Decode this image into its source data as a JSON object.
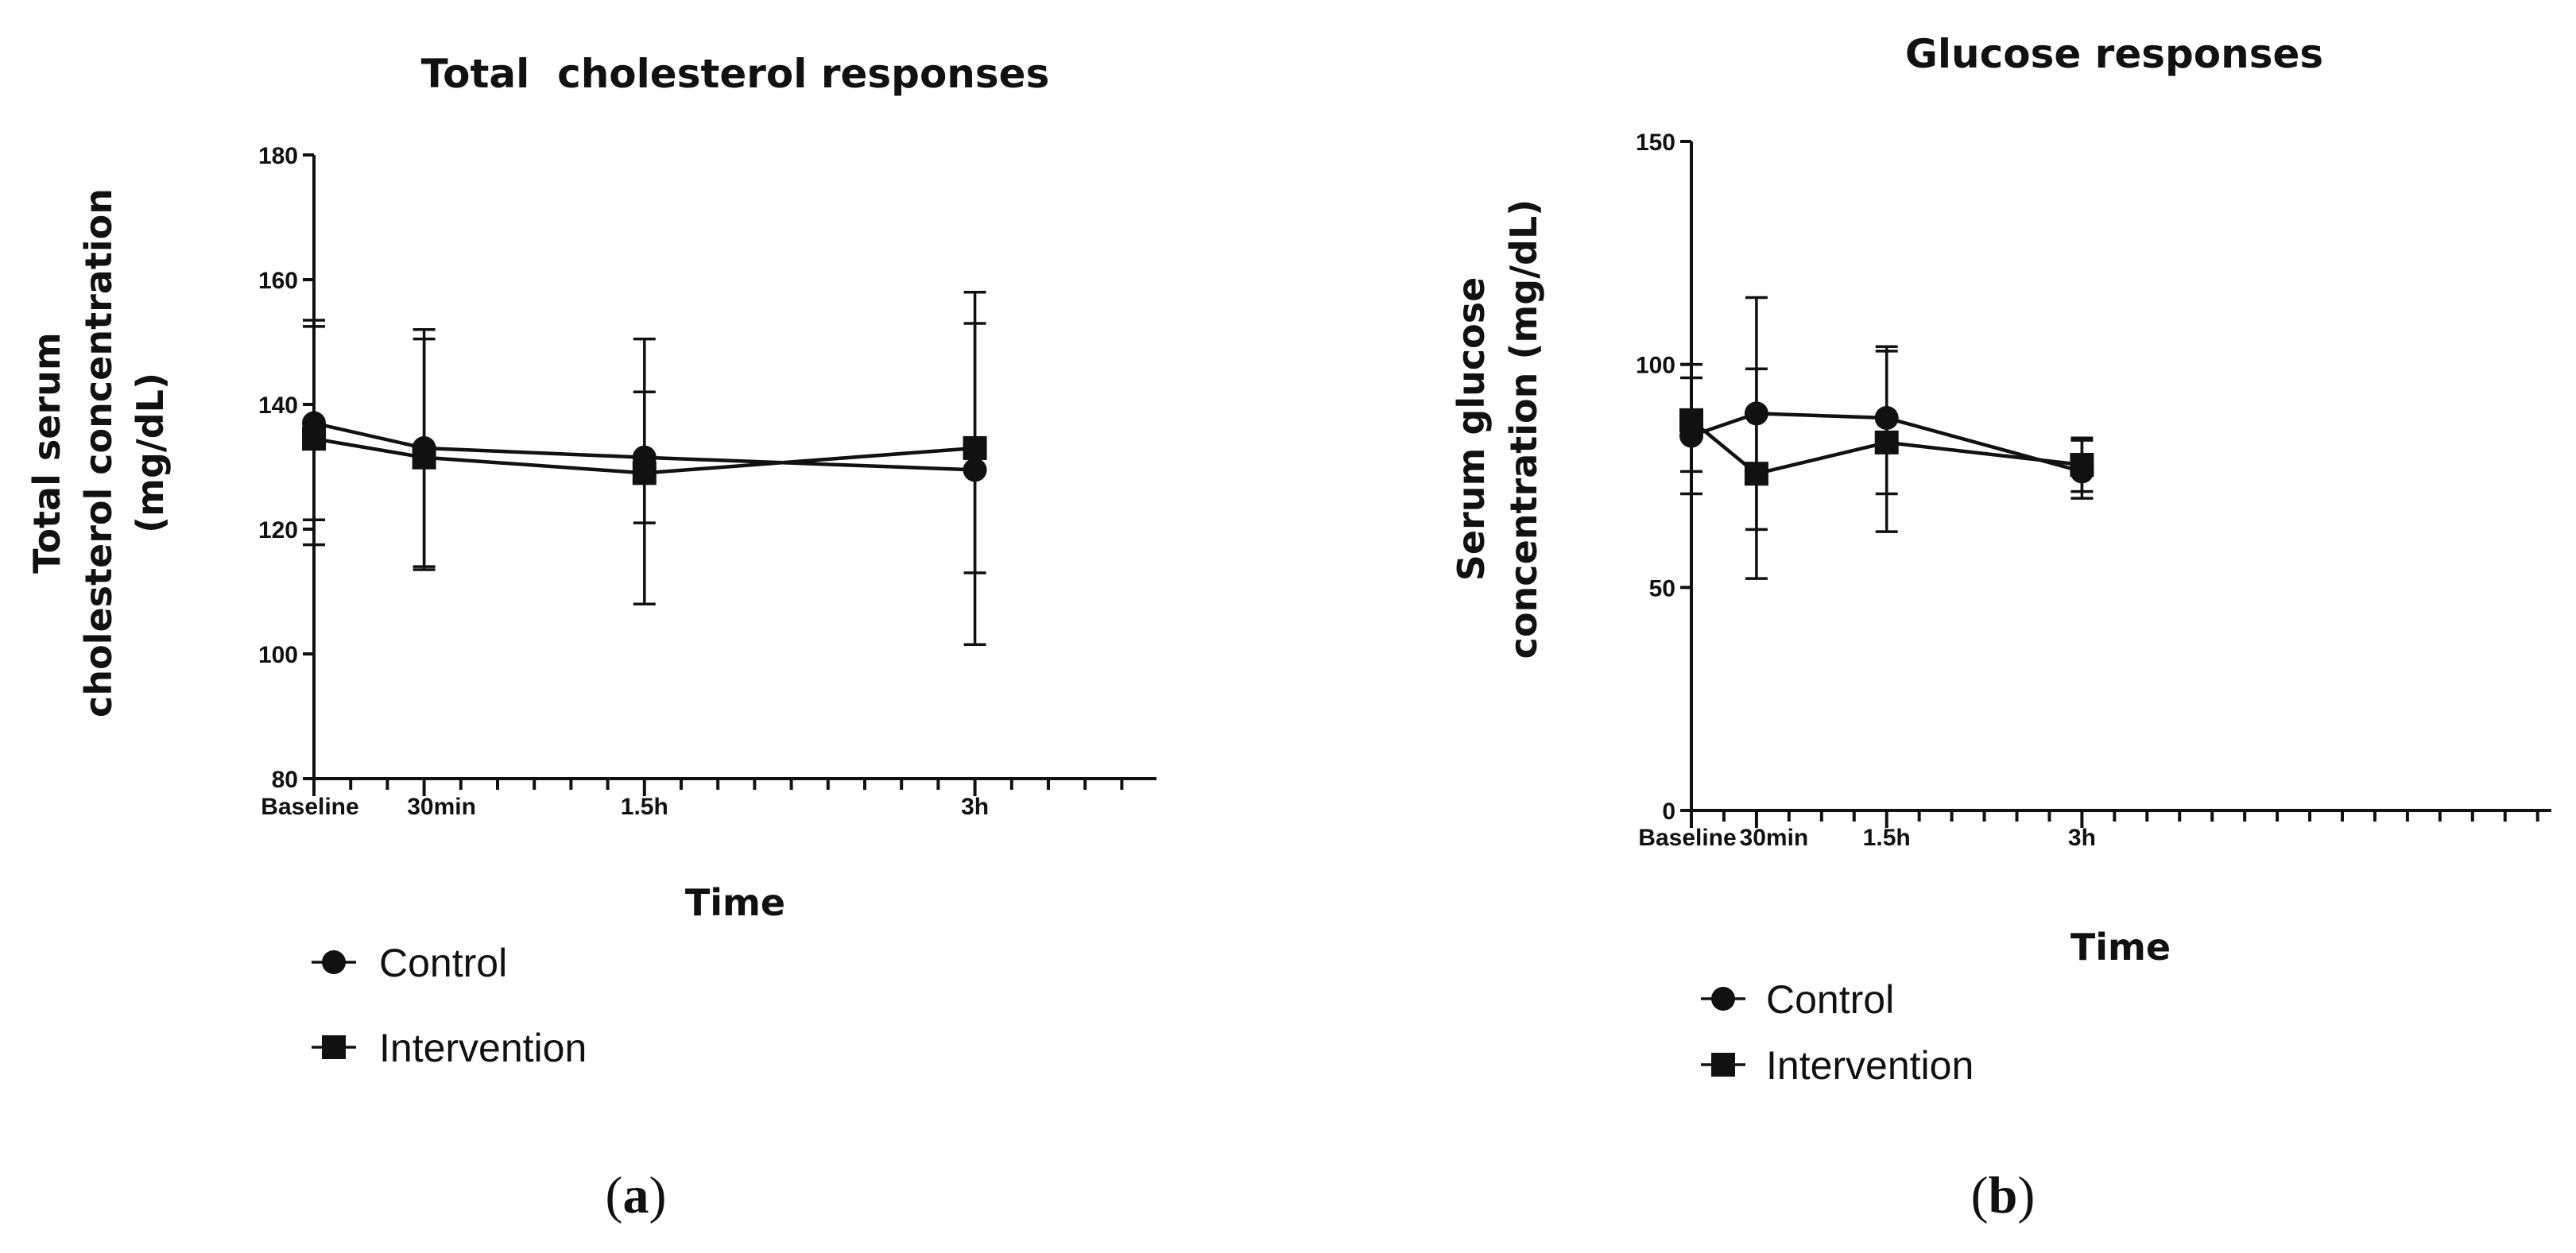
{
  "chart_data": [
    {
      "type": "line",
      "title": "Total  cholesterol responses",
      "xlabel": "Time",
      "ylabel_lines": [
        "Total serum",
        "cholesterol concentration",
        "(mg/dL)"
      ],
      "ylim": [
        80,
        180
      ],
      "yticks": [
        "80",
        "100",
        "120",
        "140",
        "160",
        "180"
      ],
      "x_minutes": [
        0,
        30,
        90,
        180
      ],
      "categories": [
        "Baseline",
        "30min",
        "1.5h",
        "3h"
      ],
      "series": [
        {
          "name": "Control",
          "marker": "circle",
          "values": [
            137,
            133,
            131.5,
            129.5
          ],
          "err_low": [
            117.5,
            113.5,
            108,
            101.5
          ],
          "err_high": [
            152.5,
            152,
            150.5,
            158
          ]
        },
        {
          "name": "Intervention",
          "marker": "square",
          "values": [
            134.5,
            131.5,
            129,
            133
          ],
          "err_low": [
            121.5,
            114,
            121,
            113
          ],
          "err_high": [
            153.5,
            150.5,
            142,
            153
          ]
        }
      ],
      "legend": [
        "Control",
        "Intervention"
      ],
      "panel_label": {
        "open": "(",
        "letter": "a",
        "close": ")"
      }
    },
    {
      "type": "line",
      "title": "Glucose responses",
      "xlabel": "Time",
      "ylabel_lines": [
        "Serum glucose",
        "concentration (mg/dL)"
      ],
      "ylim": [
        0,
        150
      ],
      "yticks": [
        "0",
        "50",
        "100",
        "150"
      ],
      "x_minutes": [
        0,
        30,
        90,
        180
      ],
      "categories": [
        "Baseline",
        "30min",
        "1.5h",
        "3h"
      ],
      "series": [
        {
          "name": "Control",
          "marker": "circle",
          "values": [
            84,
            89,
            88,
            76
          ],
          "err_low": [
            71,
            63,
            71,
            70
          ],
          "err_high": [
            97,
            115,
            104,
            83
          ]
        },
        {
          "name": "Intervention",
          "marker": "square",
          "values": [
            87.5,
            75.5,
            82.5,
            77.5
          ],
          "err_low": [
            76,
            52,
            62.5,
            71.5
          ],
          "err_high": [
            100,
            99,
            103,
            83.5
          ]
        }
      ],
      "legend": [
        "Control",
        "Intervention"
      ],
      "panel_label": {
        "open": "(",
        "letter": "b",
        "close": ")"
      }
    }
  ]
}
